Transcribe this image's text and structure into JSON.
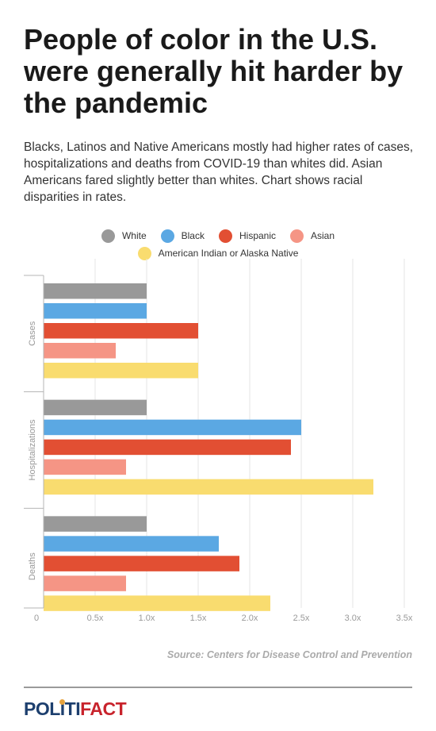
{
  "header": {
    "title": "People of color in the U.S. were generally hit harder by the pandemic",
    "subtitle": "Blacks, Latinos and Native Americans mostly had higher rates of cases, hospitalizations and deaths from COVID-19 than whites did. Asian Americans fared slightly better than whites. Chart shows racial disparities in rates."
  },
  "chart_data": {
    "type": "bar",
    "orientation": "horizontal",
    "categories": [
      "Cases",
      "Hospitalizations",
      "Deaths"
    ],
    "series": [
      {
        "name": "White",
        "color": "#999999",
        "values": [
          1.0,
          1.0,
          1.0
        ]
      },
      {
        "name": "Black",
        "color": "#5ba8e3",
        "values": [
          1.0,
          2.5,
          1.7
        ]
      },
      {
        "name": "Hispanic",
        "color": "#e24f33",
        "values": [
          1.5,
          2.4,
          1.9
        ]
      },
      {
        "name": "Asian",
        "color": "#f59585",
        "values": [
          0.7,
          0.8,
          0.8
        ]
      },
      {
        "name": "American Indian or Alaska Native",
        "color": "#f9dc6f",
        "values": [
          1.5,
          3.2,
          2.2
        ]
      }
    ],
    "xlim": [
      0,
      3.5
    ],
    "xticks": [
      "0",
      "0.5x",
      "1.0x",
      "1.5x",
      "2.0x",
      "2.5x",
      "3.0x",
      "3.5x"
    ],
    "grid": true,
    "legend": "top-center"
  },
  "footer": {
    "source": "Source: Centers for Disease Control and Prevention",
    "logo_part1": "POL",
    "logo_i": "I",
    "logo_part2": "TI",
    "logo_part3": "FACT"
  }
}
